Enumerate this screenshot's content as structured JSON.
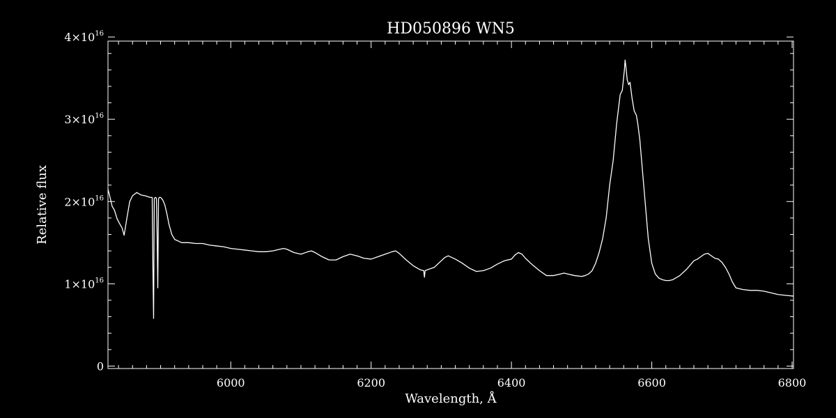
{
  "chart_data": {
    "type": "line",
    "title": "HD050896   WN5",
    "xlabel": "Wavelength, Å",
    "ylabel": "Relative flux",
    "xlim": [
      5825,
      6802
    ],
    "ylim": [
      -300000000000000.0,
      3.95e+16
    ],
    "grid": false,
    "colors": {
      "background": "#000000",
      "foreground": "#ffffff"
    },
    "x_ticks": [
      {
        "value": 6000,
        "label": "6000"
      },
      {
        "value": 6200,
        "label": "6200"
      },
      {
        "value": 6400,
        "label": "6400"
      },
      {
        "value": 6600,
        "label": "6600"
      },
      {
        "value": 6800,
        "label": "6800"
      }
    ],
    "y_ticks": [
      {
        "value": 0,
        "label": "0",
        "exp": ""
      },
      {
        "value": 1e+16,
        "label": "1×10",
        "exp": "16"
      },
      {
        "value": 2e+16,
        "label": "2×10",
        "exp": "16"
      },
      {
        "value": 3e+16,
        "label": "3×10",
        "exp": "16"
      },
      {
        "value": 4e+16,
        "label": "4×10",
        "exp": "16"
      }
    ],
    "series": [
      {
        "name": "",
        "color": "#ffffff",
        "x": [
          5825,
          5828,
          5831,
          5834,
          5838,
          5841,
          5845,
          5848,
          5852,
          5856,
          5860,
          5866,
          5872,
          5878,
          5885,
          5888,
          5889,
          5890,
          5891,
          5893,
          5894,
          5895,
          5896,
          5897,
          5898,
          5900,
          5903,
          5906,
          5909,
          5912,
          5916,
          5920,
          5925,
          5930,
          5940,
          5950,
          5960,
          5970,
          5980,
          5990,
          6000,
          6010,
          6020,
          6030,
          6040,
          6050,
          6060,
          6070,
          6075,
          6080,
          6090,
          6100,
          6110,
          6115,
          6120,
          6130,
          6140,
          6150,
          6155,
          6160,
          6170,
          6175,
          6180,
          6190,
          6200,
          6210,
          6220,
          6230,
          6235,
          6240,
          6250,
          6260,
          6270,
          6275,
          6276,
          6277,
          6280,
          6290,
          6300,
          6305,
          6310,
          6315,
          6320,
          6330,
          6340,
          6350,
          6360,
          6370,
          6380,
          6390,
          6400,
          6405,
          6410,
          6415,
          6420,
          6430,
          6440,
          6450,
          6460,
          6470,
          6475,
          6480,
          6490,
          6500,
          6505,
          6510,
          6515,
          6520,
          6525,
          6530,
          6535,
          6540,
          6545,
          6550,
          6555,
          6558,
          6561,
          6562,
          6563,
          6565,
          6567,
          6569,
          6572,
          6575,
          6578,
          6580,
          6583,
          6586,
          6590,
          6595,
          6600,
          6605,
          6610,
          6615,
          6620,
          6625,
          6630,
          6640,
          6650,
          6660,
          6665,
          6670,
          6675,
          6680,
          6685,
          6690,
          6695,
          6700,
          6705,
          6710,
          6715,
          6720,
          6730,
          6740,
          6750,
          6760,
          6770,
          6780,
          6790,
          6802
        ],
        "y": [
          2.15e+16,
          2.05e+16,
          1.94e+16,
          1.9e+16,
          1.79e+16,
          1.74e+16,
          1.68e+16,
          1.59e+16,
          1.8e+16,
          2e+16,
          2.07e+16,
          2.11e+16,
          2.08e+16,
          2.07e+16,
          2.05e+16,
          2.05e+16,
          1.2e+16,
          5800000000000000.0,
          2.04e+16,
          2.05e+16,
          2.04e+16,
          1.6e+16,
          9500000000000000.0,
          2.03e+16,
          2.05e+16,
          2.05e+16,
          2.02e+16,
          1.96e+16,
          1.85e+16,
          1.72e+16,
          1.6e+16,
          1.54e+16,
          1.52e+16,
          1.5e+16,
          1.5e+16,
          1.49e+16,
          1.49e+16,
          1.47e+16,
          1.46e+16,
          1.45e+16,
          1.43e+16,
          1.42e+16,
          1.41e+16,
          1.4e+16,
          1.39e+16,
          1.39e+16,
          1.4e+16,
          1.42e+16,
          1.43e+16,
          1.42e+16,
          1.38e+16,
          1.36e+16,
          1.39e+16,
          1.4e+16,
          1.38e+16,
          1.33e+16,
          1.29e+16,
          1.29e+16,
          1.31e+16,
          1.33e+16,
          1.36e+16,
          1.35e+16,
          1.34e+16,
          1.31e+16,
          1.3e+16,
          1.33e+16,
          1.36e+16,
          1.39e+16,
          1.4e+16,
          1.37e+16,
          1.29e+16,
          1.22e+16,
          1.17e+16,
          1.16e+16,
          1.08e+16,
          1.16e+16,
          1.17e+16,
          1.2e+16,
          1.28e+16,
          1.32e+16,
          1.34e+16,
          1.32e+16,
          1.3e+16,
          1.25e+16,
          1.19e+16,
          1.15e+16,
          1.16e+16,
          1.19e+16,
          1.24e+16,
          1.28e+16,
          1.3e+16,
          1.35e+16,
          1.38e+16,
          1.36e+16,
          1.31e+16,
          1.23e+16,
          1.16e+16,
          1.1e+16,
          1.1e+16,
          1.12e+16,
          1.13e+16,
          1.12e+16,
          1.1e+16,
          1.09e+16,
          1.1e+16,
          1.12e+16,
          1.16e+16,
          1.25e+16,
          1.38e+16,
          1.55e+16,
          1.8e+16,
          2.2e+16,
          2.5e+16,
          2.95e+16,
          3.3e+16,
          3.35e+16,
          3.6e+16,
          3.72e+16,
          3.65e+16,
          3.48e+16,
          3.42e+16,
          3.45e+16,
          3.25e+16,
          3.1e+16,
          3.05e+16,
          2.95e+16,
          2.75e+16,
          2.45e+16,
          2.05e+16,
          1.55e+16,
          1.25e+16,
          1.12e+16,
          1.07e+16,
          1.05e+16,
          1.04e+16,
          1.04e+16,
          1.05e+16,
          1.1e+16,
          1.18e+16,
          1.28e+16,
          1.3e+16,
          1.33e+16,
          1.36e+16,
          1.37e+16,
          1.34e+16,
          1.31e+16,
          1.3e+16,
          1.26e+16,
          1.2e+16,
          1.12e+16,
          1.02e+16,
          9500000000000000.0,
          9300000000000000.0,
          9200000000000000.0,
          9200000000000000.0,
          9100000000000000.0,
          8900000000000000.0,
          8700000000000000.0,
          8600000000000000.0,
          8500000000000000.0
        ]
      }
    ]
  }
}
